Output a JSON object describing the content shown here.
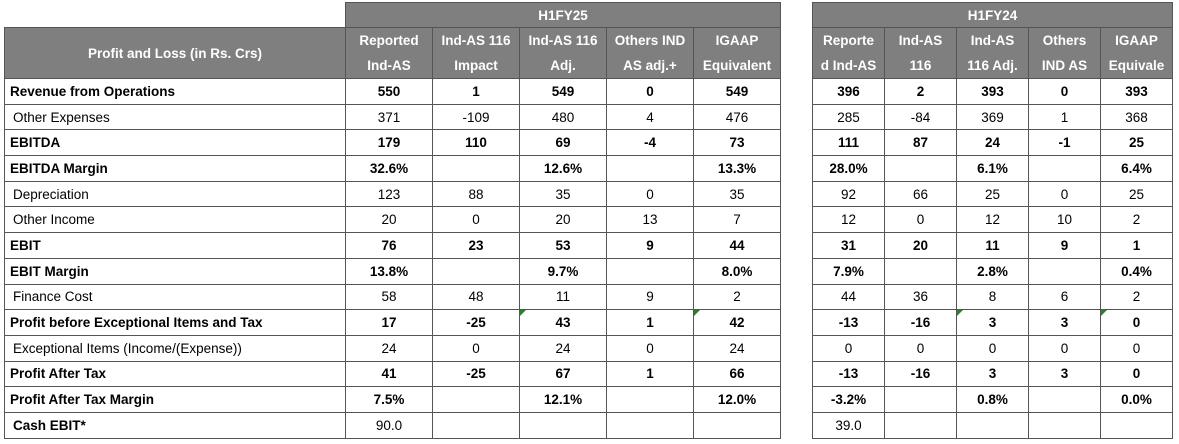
{
  "header": {
    "row_label": "Profit and Loss (in Rs. Crs)",
    "period_left": "H1FY25",
    "period_right": "H1FY24",
    "left_columns": [
      {
        "line1": "Reported",
        "line2": "Ind-AS"
      },
      {
        "line1": "Ind-AS 116",
        "line2": "Impact"
      },
      {
        "line1": "Ind-AS 116",
        "line2": "Adj."
      },
      {
        "line1": "Others IND",
        "line2": "AS adj.+"
      },
      {
        "line1": "IGAAP",
        "line2": "Equivalent"
      }
    ],
    "right_columns": [
      {
        "line1": "Reporte",
        "line2": "d Ind-AS"
      },
      {
        "line1": "Ind-AS",
        "line2": "116"
      },
      {
        "line1": "Ind-AS",
        "line2": "116 Adj."
      },
      {
        "line1": "Others",
        "line2": "IND AS"
      },
      {
        "line1": "IGAAP",
        "line2": "Equivale"
      }
    ]
  },
  "rows": [
    {
      "label": "Revenue from Operations",
      "left": [
        "550",
        "1",
        "549",
        "0",
        "549"
      ],
      "right": [
        "396",
        "2",
        "393",
        "0",
        "393"
      ]
    },
    {
      "label": "Other Expenses",
      "left": [
        "371",
        "-109",
        "480",
        "4",
        "476"
      ],
      "right": [
        "285",
        "-84",
        "369",
        "1",
        "368"
      ]
    },
    {
      "label": "EBITDA",
      "left": [
        "179",
        "110",
        "69",
        "-4",
        "73"
      ],
      "right": [
        "111",
        "87",
        "24",
        "-1",
        "25"
      ]
    },
    {
      "label": "EBITDA Margin",
      "left": [
        "32.6%",
        "",
        "12.6%",
        "",
        "13.3%"
      ],
      "right": [
        "28.0%",
        "",
        "6.1%",
        "",
        "6.4%"
      ]
    },
    {
      "label": "Depreciation",
      "left": [
        "123",
        "88",
        "35",
        "0",
        "35"
      ],
      "right": [
        "92",
        "66",
        "25",
        "0",
        "25"
      ]
    },
    {
      "label": "Other Income",
      "left": [
        "20",
        "0",
        "20",
        "13",
        "7"
      ],
      "right": [
        "12",
        "0",
        "12",
        "10",
        "2"
      ]
    },
    {
      "label": "EBIT",
      "left": [
        "76",
        "23",
        "53",
        "9",
        "44"
      ],
      "right": [
        "31",
        "20",
        "11",
        "9",
        "1"
      ]
    },
    {
      "label": "EBIT Margin",
      "left": [
        "13.8%",
        "",
        "9.7%",
        "",
        "8.0%"
      ],
      "right": [
        "7.9%",
        "",
        "2.8%",
        "",
        "0.4%"
      ]
    },
    {
      "label": "Finance Cost",
      "left": [
        "58",
        "48",
        "11",
        "9",
        "2"
      ],
      "right": [
        "44",
        "36",
        "8",
        "6",
        "2"
      ]
    },
    {
      "label": "Profit before Exceptional Items and Tax",
      "left": [
        "17",
        "-25",
        "43",
        "1",
        "42"
      ],
      "right": [
        "-13",
        "-16",
        "3",
        "3",
        "0"
      ]
    },
    {
      "label": "Exceptional Items (Income/(Expense))",
      "left": [
        "24",
        "0",
        "24",
        "0",
        "24"
      ],
      "right": [
        "0",
        "0",
        "0",
        "0",
        "0"
      ]
    },
    {
      "label": "Profit After Tax",
      "left": [
        "41",
        "-25",
        "67",
        "1",
        "66"
      ],
      "right": [
        "-13",
        "-16",
        "3",
        "3",
        "0"
      ]
    },
    {
      "label": "Profit After Tax Margin",
      "left": [
        "7.5%",
        "",
        "12.1%",
        "",
        "12.0%"
      ],
      "right": [
        "-3.2%",
        "",
        "0.8%",
        "",
        "0.0%"
      ]
    },
    {
      "label": "Cash EBIT*",
      "left": [
        "90.0",
        "",
        "",
        "",
        ""
      ],
      "right": [
        "39.0",
        "",
        "",
        "",
        ""
      ]
    }
  ],
  "colors": {
    "header_bg": "#7f7f7f",
    "header_text": "#ffffff",
    "marker_green": "#2e7d32"
  }
}
